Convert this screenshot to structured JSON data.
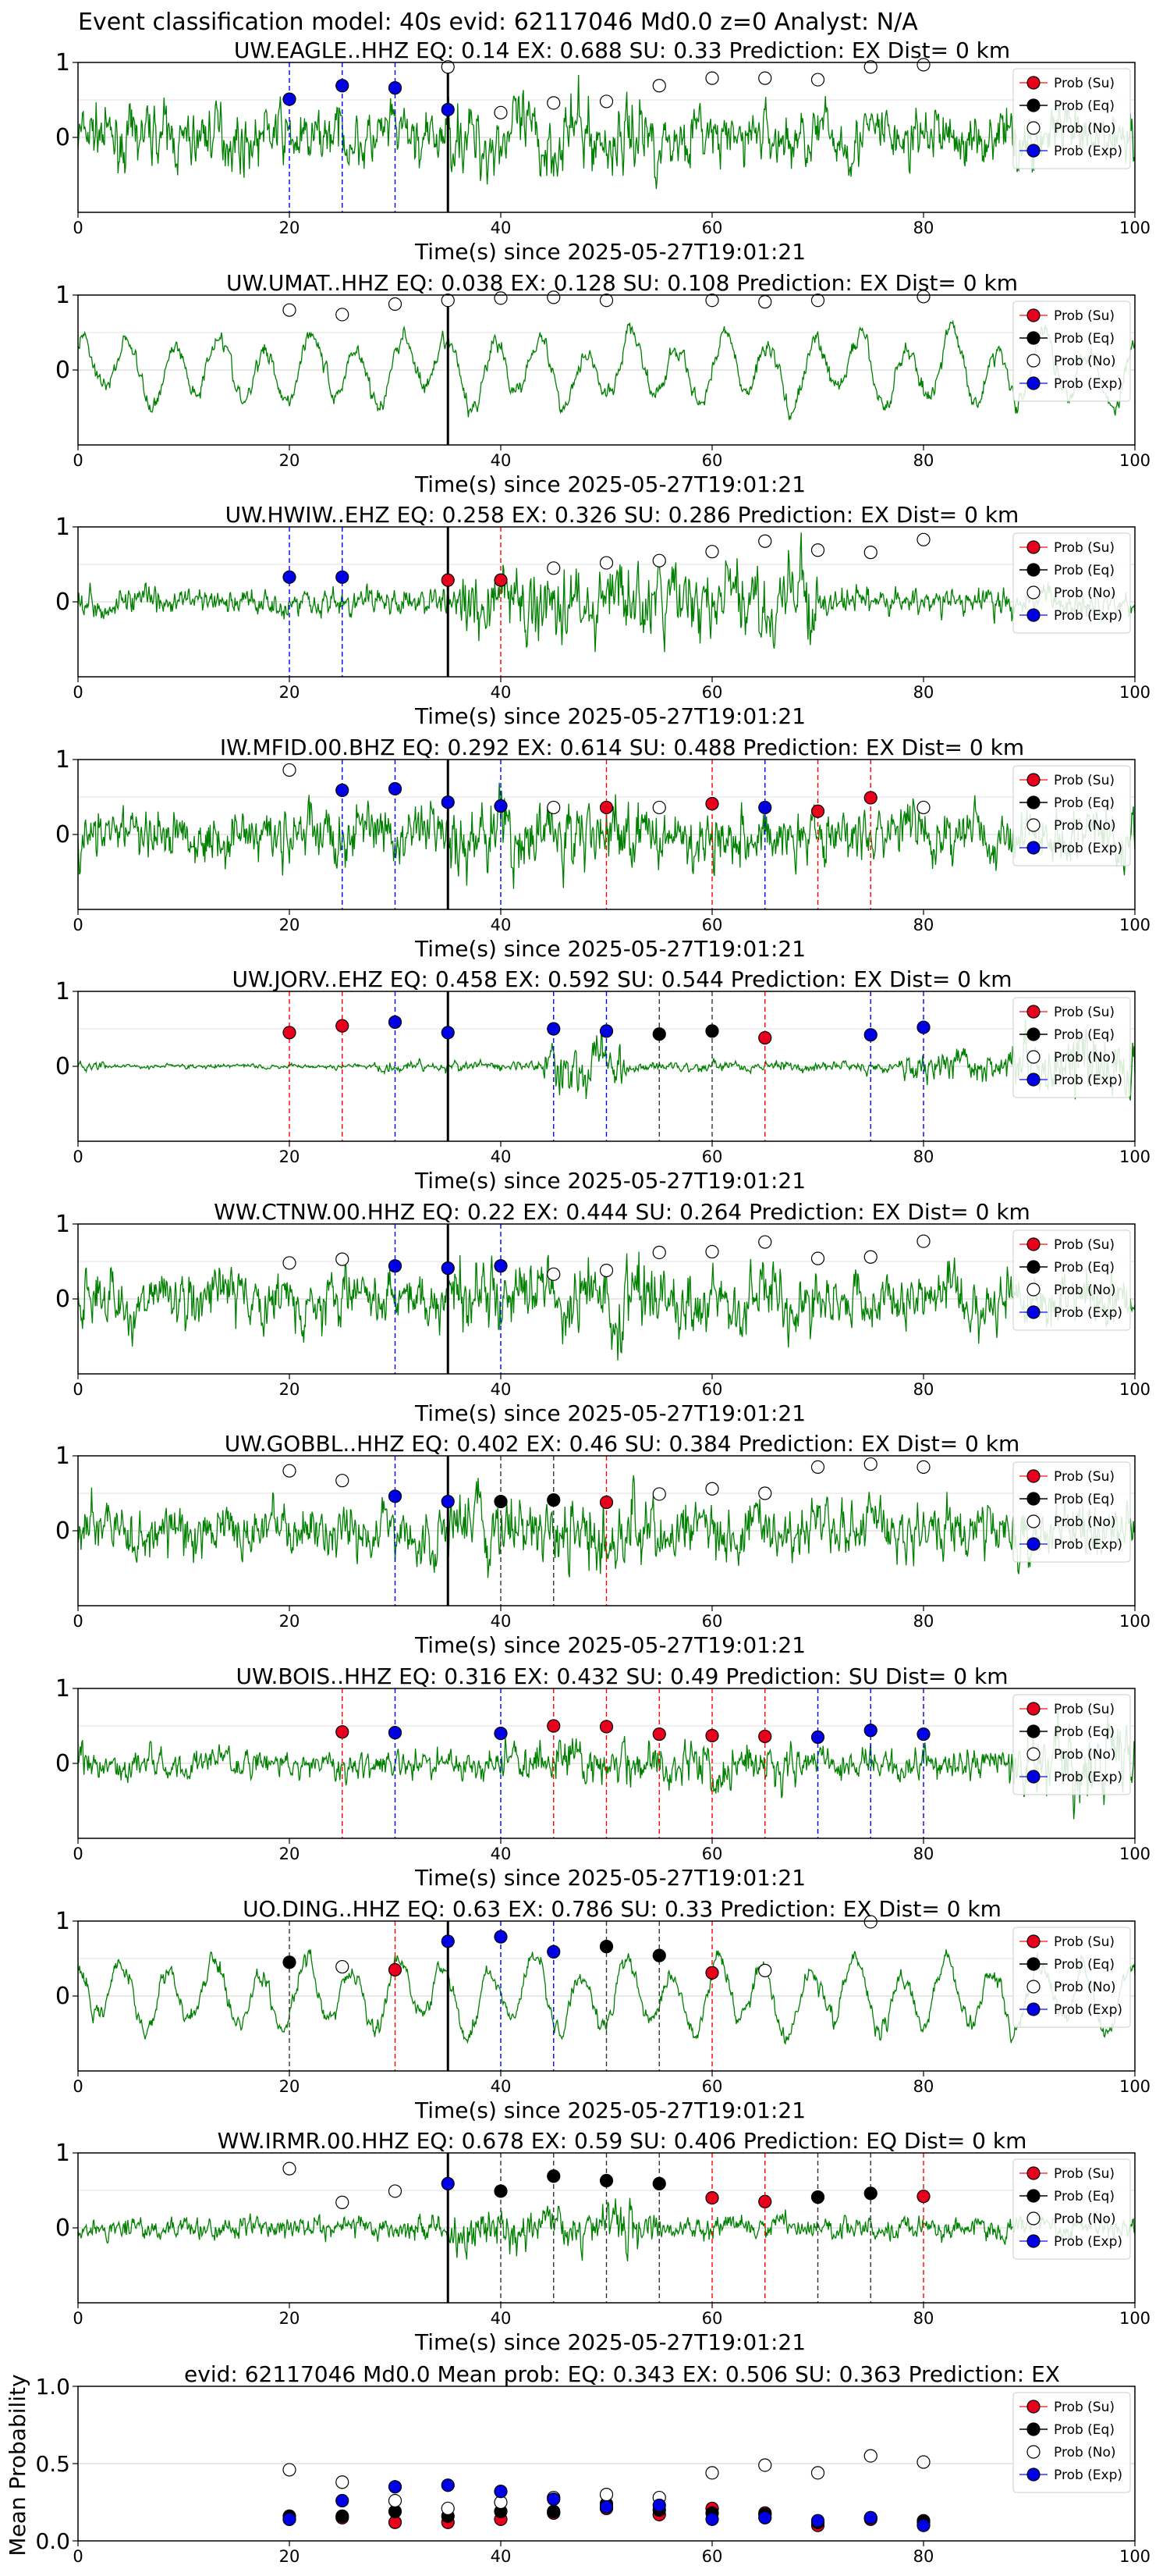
{
  "figure_title": "Event classification model: 40s evid: 62117046 Md0.0 z=0 Analyst: N/A",
  "legend_labels": [
    "Prob (Su)",
    "Prob (Eq)",
    "Prob (No)",
    "Prob (Exp)"
  ],
  "colors": {
    "su": "#e8001c",
    "eq": "#000000",
    "no": "#ffffff",
    "exp": "#0000e6",
    "trace": "#008000",
    "pick": "#000000"
  },
  "chart_data": [
    {
      "type": "line",
      "title": "UW.EAGLE..HHZ   EQ: 0.14  EX: 0.688  SU: 0.33   Prediction: EX    Dist= 0 km",
      "xlabel": "Time(s) since 2025-05-27T19:01:21",
      "xlim": [
        0,
        100
      ],
      "ylim": [
        -1,
        1
      ],
      "xticks": [
        0,
        20,
        40,
        60,
        80,
        100
      ],
      "yticks": [
        0,
        1
      ],
      "pick_time": 35,
      "trace_style": "noisy",
      "series": [
        {
          "name": "Prob (Exp)",
          "x": [
            20,
            25,
            30,
            35
          ],
          "y": [
            0.51,
            0.69,
            0.66,
            0.37
          ]
        },
        {
          "name": "Prob (No)",
          "x": [
            35,
            40,
            45,
            50,
            55,
            60,
            65,
            70,
            75,
            80
          ],
          "y": [
            0.94,
            0.33,
            0.46,
            0.48,
            0.69,
            0.79,
            0.79,
            0.77,
            0.94,
            0.97
          ]
        }
      ]
    },
    {
      "type": "line",
      "title": "UW.UMAT..HHZ   EQ: 0.038  EX: 0.128  SU: 0.108   Prediction: EX    Dist= 0 km",
      "xlabel": "Time(s) since 2025-05-27T19:01:21",
      "xlim": [
        0,
        100
      ],
      "ylim": [
        -1,
        1
      ],
      "xticks": [
        0,
        20,
        40,
        60,
        80,
        100
      ],
      "yticks": [
        0,
        1
      ],
      "pick_time": 35,
      "trace_style": "oscillatory",
      "series": [
        {
          "name": "Prob (No)",
          "x": [
            20,
            25,
            30,
            35,
            40,
            45,
            50,
            60,
            65,
            70,
            80
          ],
          "y": [
            0.8,
            0.74,
            0.88,
            0.93,
            0.96,
            0.97,
            0.93,
            0.93,
            0.91,
            0.93,
            0.98
          ]
        }
      ]
    },
    {
      "type": "line",
      "title": "UW.HWIW..EHZ   EQ: 0.258  EX: 0.326  SU: 0.286   Prediction: EX    Dist= 0 km",
      "xlabel": "Time(s) since 2025-05-27T19:01:21",
      "xlim": [
        0,
        100
      ],
      "ylim": [
        -1,
        1
      ],
      "xticks": [
        0,
        20,
        40,
        60,
        80,
        100
      ],
      "yticks": [
        0,
        1
      ],
      "pick_time": 35,
      "trace_style": "burst",
      "series": [
        {
          "name": "Prob (Su)",
          "x": [
            35,
            40
          ],
          "y": [
            0.29,
            0.29
          ]
        },
        {
          "name": "Prob (Exp)",
          "x": [
            20,
            25
          ],
          "y": [
            0.33,
            0.33
          ]
        },
        {
          "name": "Prob (No)",
          "x": [
            45,
            50,
            55,
            60,
            65,
            70,
            75,
            80
          ],
          "y": [
            0.45,
            0.52,
            0.55,
            0.67,
            0.81,
            0.69,
            0.66,
            0.83
          ]
        }
      ]
    },
    {
      "type": "line",
      "title": "IW.MFID.00.BHZ   EQ: 0.292  EX: 0.614  SU: 0.488   Prediction: EX    Dist= 0 km",
      "xlabel": "Time(s) since 2025-05-27T19:01:21",
      "xlim": [
        0,
        100
      ],
      "ylim": [
        -1,
        1
      ],
      "xticks": [
        0,
        20,
        40,
        60,
        80,
        100
      ],
      "yticks": [
        0,
        1
      ],
      "pick_time": 35,
      "trace_style": "noisy",
      "series": [
        {
          "name": "Prob (Su)",
          "x": [
            50,
            60,
            70,
            75
          ],
          "y": [
            0.36,
            0.41,
            0.31,
            0.49
          ]
        },
        {
          "name": "Prob (Exp)",
          "x": [
            25,
            30,
            35,
            40,
            65
          ],
          "y": [
            0.59,
            0.61,
            0.43,
            0.38,
            0.36
          ]
        },
        {
          "name": "Prob (No)",
          "x": [
            20,
            45,
            55,
            80
          ],
          "y": [
            0.86,
            0.36,
            0.36,
            0.36
          ]
        }
      ]
    },
    {
      "type": "line",
      "title": "UW.JORV..EHZ   EQ: 0.458  EX: 0.592  SU: 0.544   Prediction: EX    Dist= 0 km",
      "xlabel": "Time(s) since 2025-05-27T19:01:21",
      "xlim": [
        0,
        100
      ],
      "ylim": [
        -1,
        1
      ],
      "xticks": [
        0,
        20,
        40,
        60,
        80,
        100
      ],
      "yticks": [
        0,
        1
      ],
      "pick_time": 35,
      "trace_style": "quiet",
      "series": [
        {
          "name": "Prob (Su)",
          "x": [
            20,
            25,
            65
          ],
          "y": [
            0.45,
            0.54,
            0.38
          ]
        },
        {
          "name": "Prob (Eq)",
          "x": [
            55,
            60
          ],
          "y": [
            0.43,
            0.47
          ]
        },
        {
          "name": "Prob (Exp)",
          "x": [
            30,
            35,
            45,
            50,
            75,
            80
          ],
          "y": [
            0.59,
            0.45,
            0.5,
            0.47,
            0.42,
            0.52
          ]
        }
      ]
    },
    {
      "type": "line",
      "title": "WW.CTNW.00.HHZ   EQ: 0.22  EX: 0.444  SU: 0.264   Prediction: EX    Dist= 0 km",
      "xlabel": "Time(s) since 2025-05-27T19:01:21",
      "xlim": [
        0,
        100
      ],
      "ylim": [
        -1,
        1
      ],
      "xticks": [
        0,
        20,
        40,
        60,
        80,
        100
      ],
      "yticks": [
        0,
        1
      ],
      "pick_time": 35,
      "trace_style": "noisy",
      "series": [
        {
          "name": "Prob (Exp)",
          "x": [
            30,
            35,
            40
          ],
          "y": [
            0.44,
            0.41,
            0.44
          ]
        },
        {
          "name": "Prob (No)",
          "x": [
            20,
            25,
            45,
            50,
            55,
            60,
            65,
            70,
            75,
            80
          ],
          "y": [
            0.48,
            0.53,
            0.33,
            0.38,
            0.62,
            0.63,
            0.76,
            0.54,
            0.56,
            0.77
          ]
        }
      ]
    },
    {
      "type": "line",
      "title": "UW.GOBBL..HHZ   EQ: 0.402  EX: 0.46  SU: 0.384   Prediction: EX    Dist= 0 km",
      "xlabel": "Time(s) since 2025-05-27T19:01:21",
      "xlim": [
        0,
        100
      ],
      "ylim": [
        -1,
        1
      ],
      "xticks": [
        0,
        20,
        40,
        60,
        80,
        100
      ],
      "yticks": [
        0,
        1
      ],
      "pick_time": 35,
      "trace_style": "noisy",
      "series": [
        {
          "name": "Prob (Su)",
          "x": [
            50
          ],
          "y": [
            0.38
          ]
        },
        {
          "name": "Prob (Eq)",
          "x": [
            40,
            45
          ],
          "y": [
            0.39,
            0.41
          ]
        },
        {
          "name": "Prob (Exp)",
          "x": [
            30,
            35
          ],
          "y": [
            0.46,
            0.39
          ]
        },
        {
          "name": "Prob (No)",
          "x": [
            20,
            25,
            55,
            60,
            65,
            70,
            75,
            80
          ],
          "y": [
            0.8,
            0.67,
            0.49,
            0.56,
            0.5,
            0.85,
            0.89,
            0.85
          ]
        }
      ]
    },
    {
      "type": "line",
      "title": "UW.BOIS..HHZ   EQ: 0.316  EX: 0.432  SU: 0.49   Prediction: SU    Dist= 0 km",
      "xlabel": "Time(s) since 2025-05-27T19:01:21",
      "xlim": [
        0,
        100
      ],
      "ylim": [
        -1,
        1
      ],
      "xticks": [
        0,
        20,
        40,
        60,
        80,
        100
      ],
      "yticks": [
        0,
        1
      ],
      "pick_time": null,
      "trace_style": "burst-late",
      "series": [
        {
          "name": "Prob (Su)",
          "x": [
            25,
            45,
            50,
            55,
            60,
            65
          ],
          "y": [
            0.42,
            0.5,
            0.49,
            0.39,
            0.37,
            0.36
          ]
        },
        {
          "name": "Prob (Exp)",
          "x": [
            30,
            40,
            70,
            75,
            80
          ],
          "y": [
            0.41,
            0.4,
            0.35,
            0.44,
            0.39
          ]
        }
      ]
    },
    {
      "type": "line",
      "title": "UO.DING..HHZ   EQ: 0.63  EX: 0.786  SU: 0.33   Prediction: EX    Dist= 0 km",
      "xlabel": "Time(s) since 2025-05-27T19:01:21",
      "xlim": [
        0,
        100
      ],
      "ylim": [
        -1,
        1
      ],
      "xticks": [
        0,
        20,
        40,
        60,
        80,
        100
      ],
      "yticks": [
        0,
        1
      ],
      "pick_time": 35,
      "trace_style": "oscillatory",
      "series": [
        {
          "name": "Prob (Su)",
          "x": [
            30,
            60
          ],
          "y": [
            0.35,
            0.31
          ]
        },
        {
          "name": "Prob (Eq)",
          "x": [
            20,
            50,
            55
          ],
          "y": [
            0.45,
            0.66,
            0.54
          ]
        },
        {
          "name": "Prob (Exp)",
          "x": [
            35,
            40,
            45
          ],
          "y": [
            0.73,
            0.79,
            0.59
          ]
        },
        {
          "name": "Prob (No)",
          "x": [
            25,
            65,
            75
          ],
          "y": [
            0.39,
            0.34,
            0.99
          ]
        }
      ]
    },
    {
      "type": "line",
      "title": "WW.IRMR.00.HHZ   EQ: 0.678  EX: 0.59  SU: 0.406   Prediction: EQ    Dist= 0 km",
      "xlabel": "Time(s) since 2025-05-27T19:01:21",
      "xlim": [
        0,
        100
      ],
      "ylim": [
        -1,
        1
      ],
      "xticks": [
        0,
        20,
        40,
        60,
        80,
        100
      ],
      "yticks": [
        0,
        1
      ],
      "pick_time": 35,
      "trace_style": "quietish",
      "series": [
        {
          "name": "Prob (Su)",
          "x": [
            60,
            65,
            80
          ],
          "y": [
            0.4,
            0.35,
            0.42
          ]
        },
        {
          "name": "Prob (Eq)",
          "x": [
            40,
            45,
            50,
            55,
            70,
            75
          ],
          "y": [
            0.49,
            0.69,
            0.63,
            0.59,
            0.41,
            0.46
          ]
        },
        {
          "name": "Prob (Exp)",
          "x": [
            35
          ],
          "y": [
            0.59
          ]
        },
        {
          "name": "Prob (No)",
          "x": [
            20,
            25,
            30
          ],
          "y": [
            0.79,
            0.34,
            0.49
          ]
        }
      ]
    },
    {
      "type": "scatter",
      "title": "evid: 62117046  Md0.0   Mean prob:   EQ: 0.343  EX: 0.506  SU: 0.363   Prediction: EX",
      "ylabel": "Mean Probability",
      "xlim": [
        0,
        100
      ],
      "ylim": [
        0,
        1
      ],
      "xticks": [
        0,
        20,
        40,
        60,
        80,
        100
      ],
      "yticks": [
        0,
        0.5,
        1
      ],
      "x": [
        20,
        25,
        30,
        35,
        40,
        45,
        50,
        55,
        60,
        65,
        70,
        75,
        80
      ],
      "series": [
        {
          "name": "Prob (Su)",
          "values": [
            0.14,
            0.15,
            0.12,
            0.12,
            0.14,
            0.18,
            0.21,
            0.17,
            0.21,
            0.18,
            0.1,
            0.14,
            0.12
          ]
        },
        {
          "name": "Prob (Eq)",
          "values": [
            0.16,
            0.16,
            0.19,
            0.16,
            0.19,
            0.19,
            0.24,
            0.2,
            0.18,
            0.17,
            0.12,
            0.15,
            0.13
          ]
        },
        {
          "name": "Prob (No)",
          "values": [
            0.46,
            0.38,
            0.26,
            0.21,
            0.25,
            0.28,
            0.3,
            0.28,
            0.44,
            0.49,
            0.44,
            0.55,
            0.51
          ]
        },
        {
          "name": "Prob (Exp)",
          "values": [
            0.14,
            0.26,
            0.35,
            0.36,
            0.32,
            0.27,
            0.22,
            0.23,
            0.14,
            0.15,
            0.13,
            0.15,
            0.1
          ]
        }
      ]
    }
  ]
}
